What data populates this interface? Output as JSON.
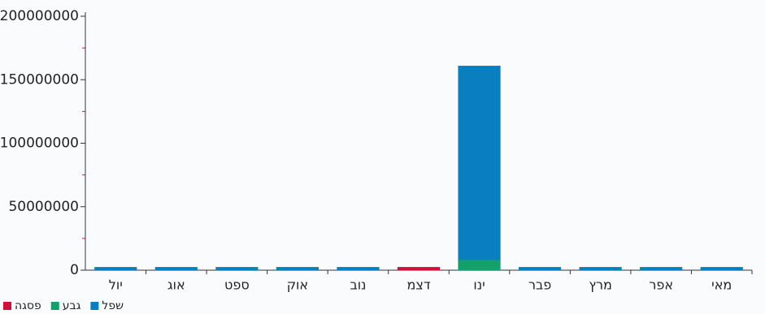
{
  "chart_data": {
    "type": "bar",
    "stacked": true,
    "categories": [
      "יול",
      "אוג",
      "ספט",
      "אוק",
      "נוב",
      "דצמ",
      "ינו",
      "פבר",
      "מרץ",
      "אפר",
      "מאי"
    ],
    "series": [
      {
        "name": "שפל",
        "color": "#0a7fc0",
        "values": [
          2500000,
          2500000,
          2500000,
          2500000,
          2500000,
          0,
          153000000,
          2500000,
          2500000,
          2500000,
          2500000
        ]
      },
      {
        "name": "גבע",
        "color": "#13a06a",
        "values": [
          0,
          0,
          0,
          0,
          0,
          0,
          8000000,
          0,
          0,
          0,
          0
        ]
      },
      {
        "name": "פסגה",
        "color": "#d0103a",
        "values": [
          0,
          0,
          0,
          0,
          0,
          2500000,
          0,
          0,
          0,
          0,
          0
        ]
      }
    ],
    "ylim": [
      0,
      200000000
    ],
    "yticks": [
      0,
      50000000,
      100000000,
      150000000,
      200000000
    ],
    "yminorticks": [
      25000000,
      75000000,
      125000000,
      175000000
    ],
    "grid": false
  }
}
